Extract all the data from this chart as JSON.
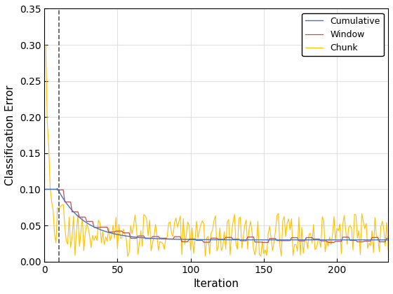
{
  "title": "",
  "xlabel": "Iteration",
  "ylabel": "Classification Error",
  "xlim": [
    0,
    235
  ],
  "ylim": [
    0,
    0.35
  ],
  "yticks": [
    0,
    0.05,
    0.1,
    0.15,
    0.2,
    0.25,
    0.3,
    0.35
  ],
  "xticks": [
    0,
    50,
    100,
    150,
    200
  ],
  "vline_x": 10,
  "vline_color": "#555555",
  "cumulative_color": "#4472C4",
  "window_color": "#C0504D",
  "chunk_color": "#FFC000",
  "legend_labels": [
    "Cumulative",
    "Window",
    "Chunk"
  ],
  "n_iterations": 235,
  "seed": 7,
  "background_color": "#ffffff",
  "grid_color": "#e0e0e0"
}
